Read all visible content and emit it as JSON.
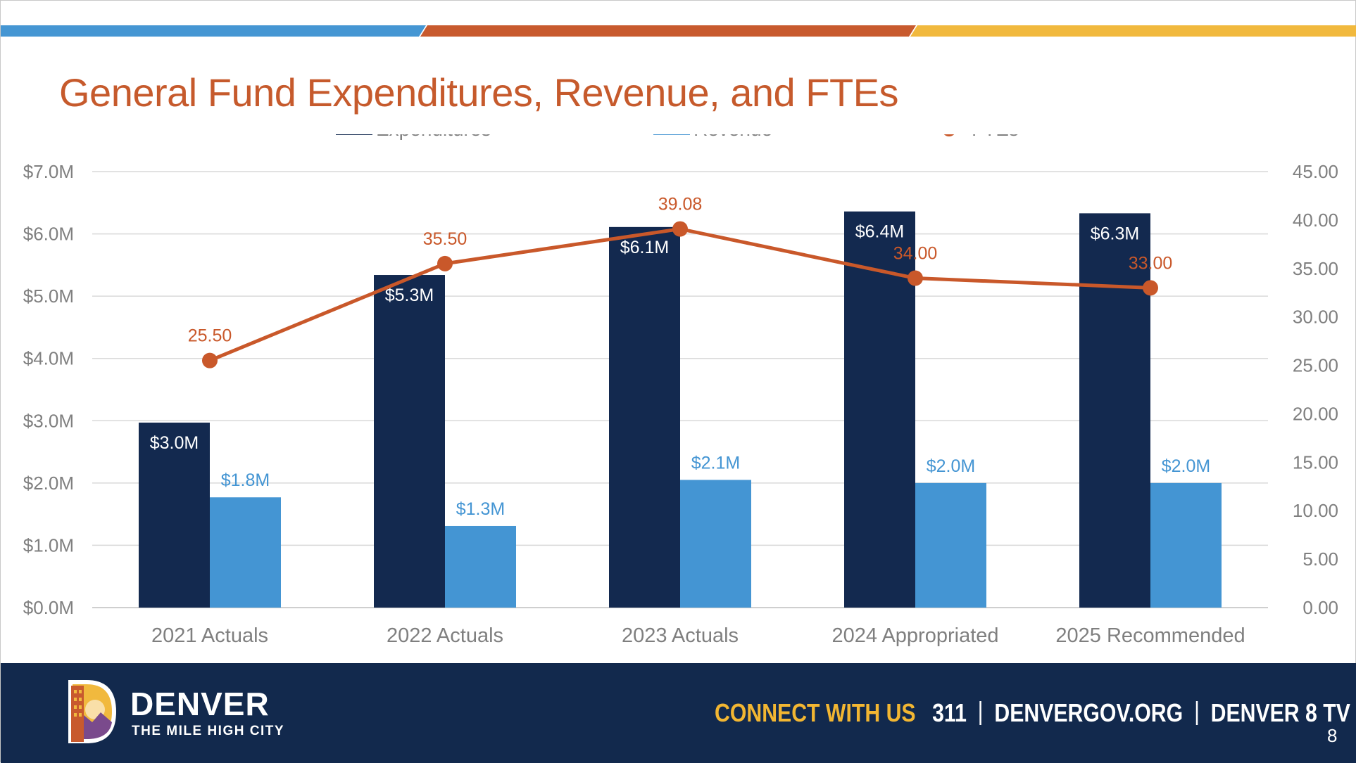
{
  "title": "General Fund Expenditures, Revenue, and FTEs",
  "colors": {
    "title": "#c65a2c",
    "stripe_blue": "#4596d3",
    "stripe_orange": "#c85a2e",
    "stripe_yellow": "#f1b93e",
    "expenditures": "#13294f",
    "revenue": "#4495d3",
    "ftes": "#c9582a",
    "footer_bg": "#12294d",
    "cta": "#f2b632"
  },
  "chart_data": {
    "type": "bar",
    "categories": [
      "2021 Actuals",
      "2022 Actuals",
      "2023 Actuals",
      "2024 Appropriated",
      "2025 Recommended"
    ],
    "series": [
      {
        "name": "Expenditures",
        "kind": "bar",
        "axis": "left",
        "values": [
          2.97,
          5.34,
          6.11,
          6.36,
          6.33
        ],
        "labels": [
          "$3.0M",
          "$5.3M",
          "$6.1M",
          "$6.4M",
          "$6.3M"
        ]
      },
      {
        "name": "Revenue",
        "kind": "bar",
        "axis": "left",
        "values": [
          1.77,
          1.31,
          2.05,
          2.0,
          2.0
        ],
        "labels": [
          "$1.8M",
          "$1.3M",
          "$2.1M",
          "$2.0M",
          "$2.0M"
        ]
      },
      {
        "name": "FTEs",
        "kind": "line",
        "axis": "right",
        "values": [
          25.5,
          35.5,
          39.08,
          34.0,
          33.0
        ],
        "labels": [
          "25.50",
          "35.50",
          "39.08",
          "34.00",
          "33.00"
        ]
      }
    ],
    "y_left": {
      "ylim": [
        0,
        7
      ],
      "ticks": [
        "$0.0M",
        "$1.0M",
        "$2.0M",
        "$3.0M",
        "$4.0M",
        "$5.0M",
        "$6.0M",
        "$7.0M"
      ]
    },
    "y_right": {
      "ylim": [
        0,
        45
      ],
      "ticks": [
        "0.00",
        "5.00",
        "10.00",
        "15.00",
        "20.00",
        "25.00",
        "30.00",
        "35.00",
        "40.00",
        "45.00"
      ]
    },
    "grid": true,
    "legend": "top-center"
  },
  "footer": {
    "brand_name": "DENVER",
    "tagline": "THE MILE HIGH CITY",
    "cta": "CONNECT WITH US",
    "links": [
      "311",
      "DENVERGOV.ORG",
      "DENVER 8 TV"
    ],
    "page_number": "8"
  },
  "icons": {
    "logo": "denver-d-logo-icon"
  }
}
